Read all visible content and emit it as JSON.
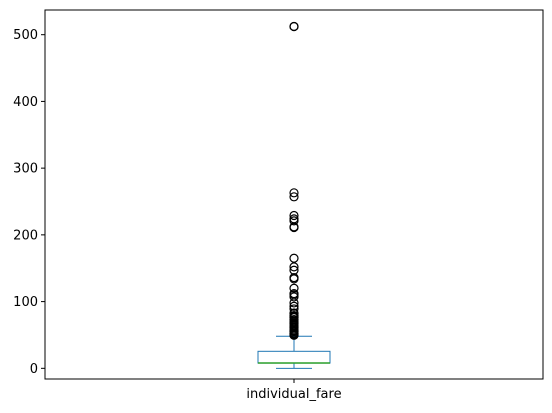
{
  "chart_data": {
    "type": "box",
    "categories": [
      "individual_fare"
    ],
    "ylim": [
      -16,
      537
    ],
    "yticks": [
      0,
      100,
      200,
      300,
      400,
      500
    ],
    "grid": false,
    "box": {
      "whisker_low": 0,
      "q1": 7.9,
      "median": 8.05,
      "q3": 25.5,
      "whisker_high": 48
    },
    "outliers": [
      512.3,
      512.3,
      263,
      257,
      229,
      224,
      221,
      212,
      211,
      165,
      152,
      147,
      136,
      134,
      120,
      112,
      110,
      107,
      98,
      93,
      89,
      83,
      82,
      79,
      78,
      77,
      76,
      73,
      71,
      69,
      67,
      65,
      63,
      61,
      59,
      57,
      56,
      55,
      53,
      52,
      51,
      50,
      49.5
    ],
    "colors": {
      "box": "#1f77b4",
      "median": "#2ca02c",
      "outlier": "#000000",
      "frame": "#000000"
    }
  }
}
